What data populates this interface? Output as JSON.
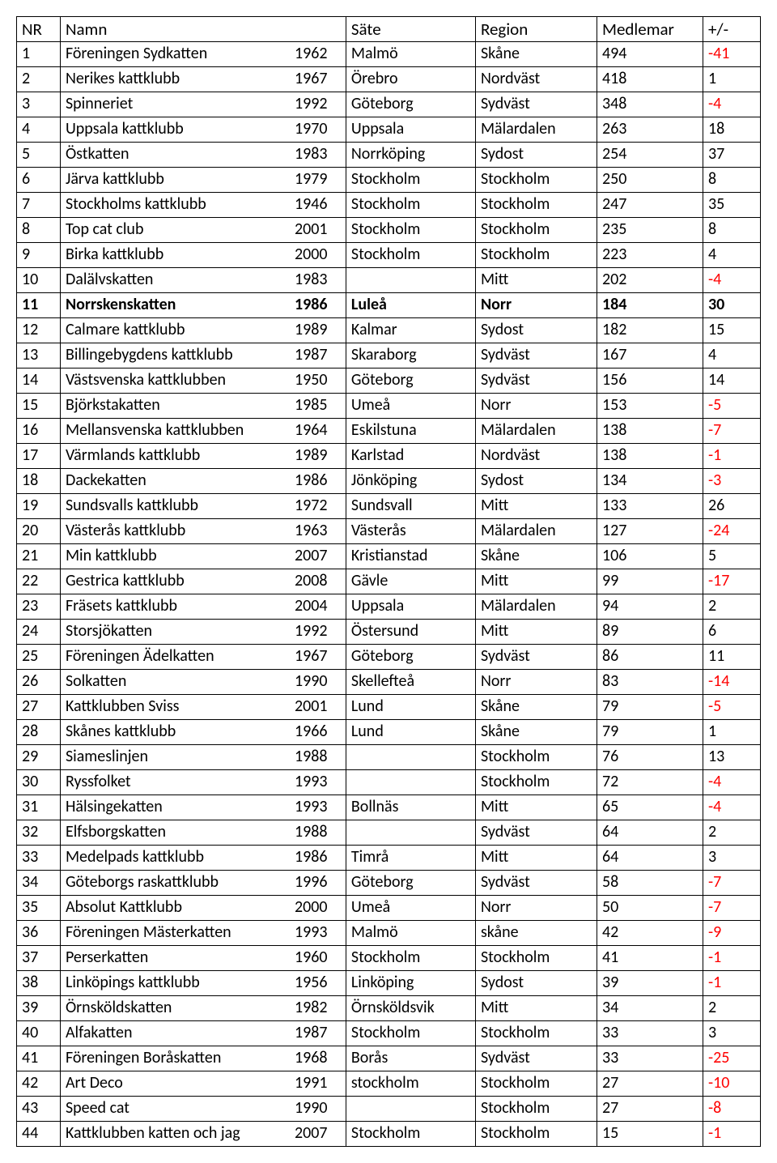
{
  "table": {
    "headers": {
      "nr": "NR",
      "name": "Namn",
      "seat": "Säte",
      "region": "Region",
      "members": "Medlemar",
      "change": "+/-"
    },
    "highlight_row_index": 10,
    "negative_color": "#ff0000",
    "rows": [
      {
        "nr": "1",
        "name": "Föreningen Sydkatten",
        "year": "1962",
        "seat": "Malmö",
        "region": "Skåne",
        "members": "494",
        "change": "-41"
      },
      {
        "nr": "2",
        "name": "Nerikes kattklubb",
        "year": "1967",
        "seat": "Örebro",
        "region": "Nordväst",
        "members": "418",
        "change": "1"
      },
      {
        "nr": "3",
        "name": "Spinneriet",
        "year": "1992",
        "seat": "Göteborg",
        "region": "Sydväst",
        "members": "348",
        "change": "-4"
      },
      {
        "nr": "4",
        "name": "Uppsala kattklubb",
        "year": "1970",
        "seat": "Uppsala",
        "region": "Mälardalen",
        "members": "263",
        "change": "18"
      },
      {
        "nr": "5",
        "name": "Östkatten",
        "year": "1983",
        "seat": "Norrköping",
        "region": "Sydost",
        "members": "254",
        "change": "37"
      },
      {
        "nr": "6",
        "name": "Järva kattklubb",
        "year": "1979",
        "seat": "Stockholm",
        "region": "Stockholm",
        "members": "250",
        "change": "8"
      },
      {
        "nr": "7",
        "name": "Stockholms kattklubb",
        "year": "1946",
        "seat": "Stockholm",
        "region": "Stockholm",
        "members": "247",
        "change": "35"
      },
      {
        "nr": "8",
        "name": "Top cat club",
        "year": "2001",
        "seat": "Stockholm",
        "region": "Stockholm",
        "members": "235",
        "change": "8"
      },
      {
        "nr": "9",
        "name": "Birka kattklubb",
        "year": "2000",
        "seat": "Stockholm",
        "region": "Stockholm",
        "members": "223",
        "change": "4"
      },
      {
        "nr": "10",
        "name": "Dalälvskatten",
        "year": "1983",
        "seat": "",
        "region": "Mitt",
        "members": "202",
        "change": "-4"
      },
      {
        "nr": "11",
        "name": "Norrskenskatten",
        "year": "1986",
        "seat": "Luleå",
        "region": "Norr",
        "members": "184",
        "change": "30"
      },
      {
        "nr": "12",
        "name": "Calmare kattklubb",
        "year": "1989",
        "seat": "Kalmar",
        "region": "Sydost",
        "members": "182",
        "change": "15"
      },
      {
        "nr": "13",
        "name": "Billingebygdens kattklubb",
        "year": "1987",
        "seat": "Skaraborg",
        "region": "Sydväst",
        "members": "167",
        "change": "4"
      },
      {
        "nr": "14",
        "name": "Västsvenska kattklubben",
        "year": "1950",
        "seat": "Göteborg",
        "region": "Sydväst",
        "members": "156",
        "change": "14"
      },
      {
        "nr": "15",
        "name": "Björkstakatten",
        "year": "1985",
        "seat": "Umeå",
        "region": "Norr",
        "members": "153",
        "change": "-5"
      },
      {
        "nr": "16",
        "name": "Mellansvenska kattklubben",
        "year": "1964",
        "seat": "Eskilstuna",
        "region": "Mälardalen",
        "members": "138",
        "change": "-7"
      },
      {
        "nr": "17",
        "name": "Värmlands kattklubb",
        "year": "1989",
        "seat": "Karlstad",
        "region": "Nordväst",
        "members": "138",
        "change": "-1"
      },
      {
        "nr": "18",
        "name": "Dackekatten",
        "year": "1986",
        "seat": "Jönköping",
        "region": "Sydost",
        "members": "134",
        "change": "-3"
      },
      {
        "nr": "19",
        "name": "Sundsvalls kattklubb",
        "year": "1972",
        "seat": "Sundsvall",
        "region": "Mitt",
        "members": "133",
        "change": "26"
      },
      {
        "nr": "20",
        "name": "Västerås kattklubb",
        "year": "1963",
        "seat": "Västerås",
        "region": "Mälardalen",
        "members": "127",
        "change": "-24"
      },
      {
        "nr": "21",
        "name": "Min kattklubb",
        "year": "2007",
        "seat": "Kristianstad",
        "region": "Skåne",
        "members": "106",
        "change": "5"
      },
      {
        "nr": "22",
        "name": "Gestrica kattklubb",
        "year": "2008",
        "seat": "Gävle",
        "region": "Mitt",
        "members": "99",
        "change": "-17"
      },
      {
        "nr": "23",
        "name": "Fräsets kattklubb",
        "year": "2004",
        "seat": "Uppsala",
        "region": "Mälardalen",
        "members": "94",
        "change": "2"
      },
      {
        "nr": "24",
        "name": "Storsjökatten",
        "year": "1992",
        "seat": "Östersund",
        "region": "Mitt",
        "members": "89",
        "change": "6"
      },
      {
        "nr": "25",
        "name": "Föreningen Ädelkatten",
        "year": "1967",
        "seat": "Göteborg",
        "region": "Sydväst",
        "members": "86",
        "change": "11"
      },
      {
        "nr": "26",
        "name": "Solkatten",
        "year": "1990",
        "seat": "Skellefteå",
        "region": "Norr",
        "members": "83",
        "change": "-14"
      },
      {
        "nr": "27",
        "name": "Kattklubben Sviss",
        "year": "2001",
        "seat": "Lund",
        "region": "Skåne",
        "members": "79",
        "change": "-5"
      },
      {
        "nr": "28",
        "name": "Skånes kattklubb",
        "year": "1966",
        "seat": "Lund",
        "region": "Skåne",
        "members": "79",
        "change": "1"
      },
      {
        "nr": "29",
        "name": "Siameslinjen",
        "year": "1988",
        "seat": "",
        "region": "Stockholm",
        "members": "76",
        "change": "13"
      },
      {
        "nr": "30",
        "name": "Ryssfolket",
        "year": "1993",
        "seat": "",
        "region": "Stockholm",
        "members": "72",
        "change": "-4"
      },
      {
        "nr": "31",
        "name": "Hälsingekatten",
        "year": "1993",
        "seat": "Bollnäs",
        "region": "Mitt",
        "members": "65",
        "change": "-4"
      },
      {
        "nr": "32",
        "name": "Elfsborgskatten",
        "year": "1988",
        "seat": "",
        "region": "Sydväst",
        "members": "64",
        "change": "2"
      },
      {
        "nr": "33",
        "name": "Medelpads kattklubb",
        "year": "1986",
        "seat": "Timrå",
        "region": "Mitt",
        "members": "64",
        "change": "3"
      },
      {
        "nr": "34",
        "name": "Göteborgs raskattklubb",
        "year": "1996",
        "seat": "Göteborg",
        "region": "Sydväst",
        "members": "58",
        "change": "-7"
      },
      {
        "nr": "35",
        "name": "Absolut Kattklubb",
        "year": "2000",
        "seat": "Umeå",
        "region": "Norr",
        "members": "50",
        "change": "-7"
      },
      {
        "nr": "36",
        "name": "Föreningen Mästerkatten",
        "year": "1993",
        "seat": "Malmö",
        "region": "skåne",
        "members": "42",
        "change": "-9"
      },
      {
        "nr": "37",
        "name": "Perserkatten",
        "year": "1960",
        "seat": "Stockholm",
        "region": "Stockholm",
        "members": "41",
        "change": "-1"
      },
      {
        "nr": "38",
        "name": "Linköpings kattklubb",
        "year": "1956",
        "seat": "Linköping",
        "region": "Sydost",
        "members": "39",
        "change": "-1"
      },
      {
        "nr": "39",
        "name": "Örnsköldskatten",
        "year": "1982",
        "seat": "Örnsköldsvik",
        "region": "Mitt",
        "members": "34",
        "change": "2"
      },
      {
        "nr": "40",
        "name": "Alfakatten",
        "year": "1987",
        "seat": "Stockholm",
        "region": "Stockholm",
        "members": "33",
        "change": "3"
      },
      {
        "nr": "41",
        "name": "Föreningen Boråskatten",
        "year": "1968",
        "seat": "Borås",
        "region": "Sydväst",
        "members": "33",
        "change": "-25"
      },
      {
        "nr": "42",
        "name": "Art Deco",
        "year": "1991",
        "seat": "stockholm",
        "region": "Stockholm",
        "members": "27",
        "change": "-10"
      },
      {
        "nr": "43",
        "name": "Speed cat",
        "year": "1990",
        "seat": "",
        "region": "Stockholm",
        "members": "27",
        "change": "-8"
      },
      {
        "nr": "44",
        "name": "Kattklubben katten och jag",
        "year": "2007",
        "seat": "Stockholm",
        "region": "Stockholm",
        "members": "15",
        "change": "-1"
      }
    ]
  }
}
